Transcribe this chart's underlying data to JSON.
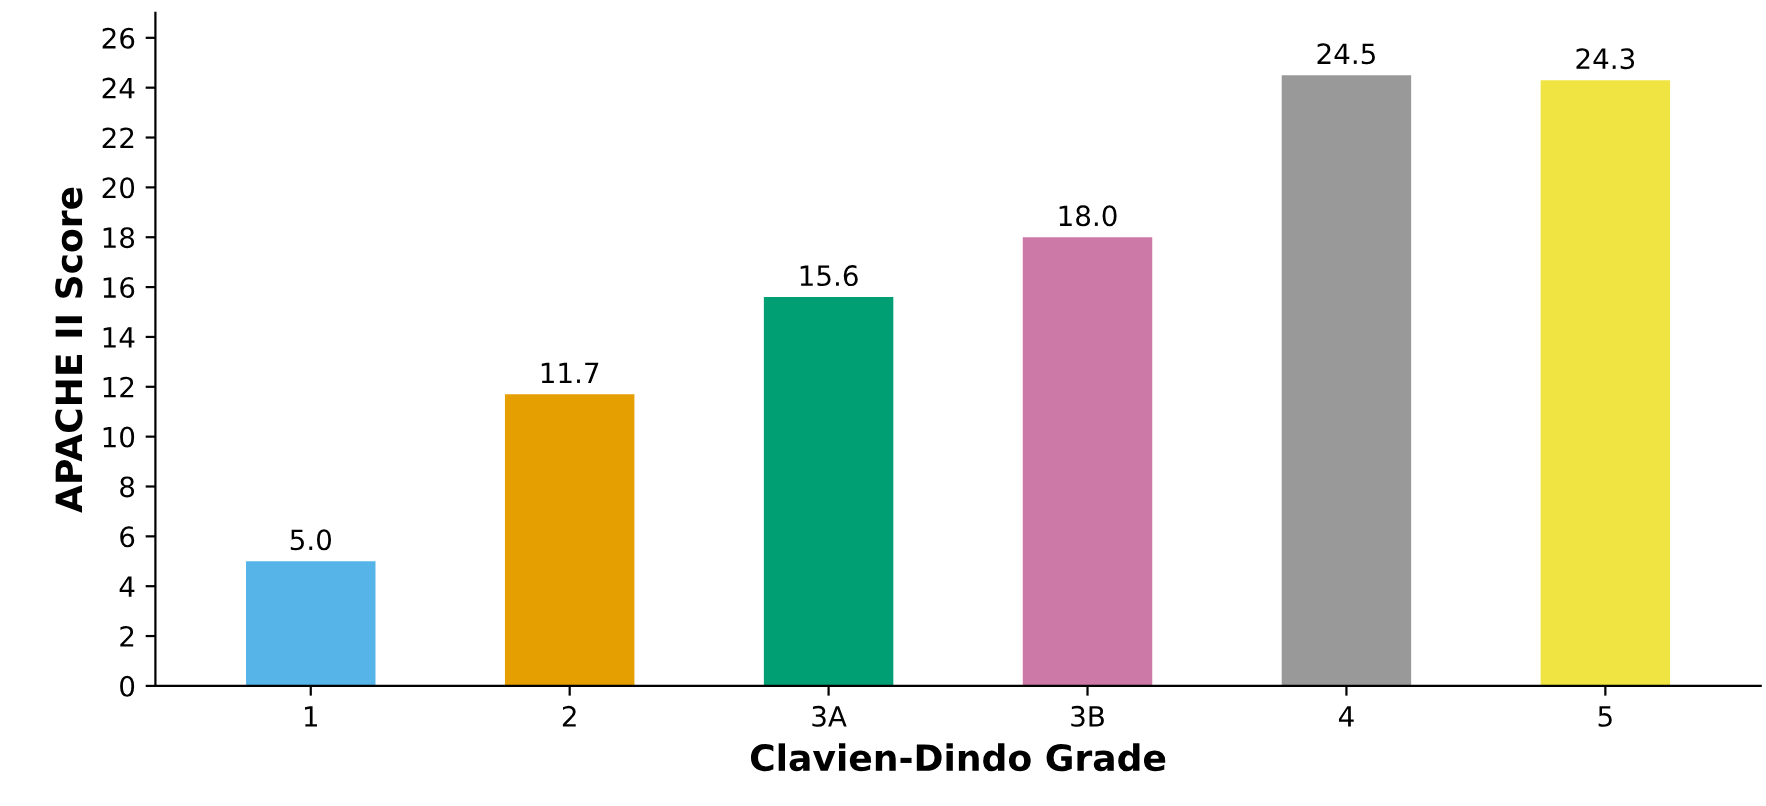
{
  "chart_data": {
    "type": "bar",
    "xlabel": "Clavien-Dindo Grade",
    "ylabel": "APACHE II Score",
    "categories": [
      "1",
      "2",
      "3A",
      "3B",
      "4",
      "5"
    ],
    "values": [
      5.0,
      11.7,
      15.6,
      18.0,
      24.5,
      24.3
    ],
    "value_labels": [
      "5.0",
      "11.7",
      "15.6",
      "18.0",
      "24.5",
      "24.3"
    ],
    "colors": [
      "#56b4e9",
      "#e69f00",
      "#009e73",
      "#cc79a7",
      "#999999",
      "#f0e442"
    ],
    "ylim": [
      0,
      27
    ],
    "yticks": [
      0,
      2,
      4,
      6,
      8,
      10,
      12,
      14,
      16,
      18,
      20,
      22,
      24,
      26
    ],
    "grid": false,
    "legend": false
  }
}
